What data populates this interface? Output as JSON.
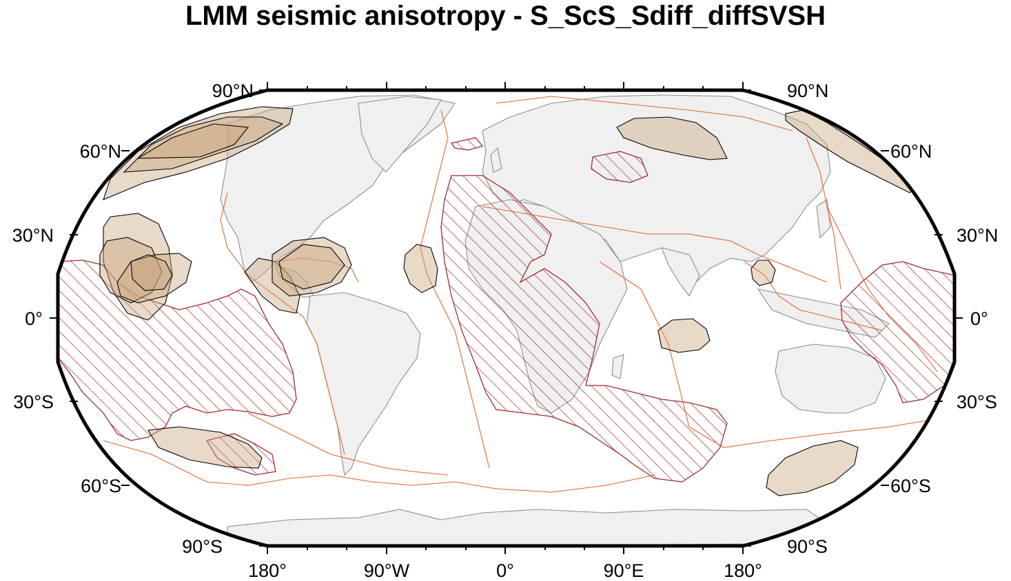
{
  "title": "LMM seismic anisotropy - S_ScS_Sdiff_diffSVSH",
  "axes": {
    "lat_left": [
      "90°N",
      "60°N",
      "30°N",
      "0°",
      "30°S",
      "60°S",
      "90°S"
    ],
    "lat_right": [
      "90°N",
      "60°N",
      "30°N",
      "0°",
      "30°S",
      "60°S",
      "90°S"
    ],
    "lon_bottom": [
      "180°",
      "90°W",
      "0°",
      "90°E",
      "180°"
    ]
  },
  "colors": {
    "land": "#f0f0f0",
    "coast": "#8c8c8c",
    "plate_boundary": "#e0642e",
    "llsvp_hatch": "#a02833",
    "anisotropy_fill": "#c9a57d",
    "frame": "#000000"
  },
  "layers": {
    "land": "continents",
    "plate_boundaries": "plate boundaries",
    "llsvp": "hatched regions",
    "anisotropy": "anisotropy regions"
  },
  "projection": "Robinson-like rounded world map, centered on 0°"
}
